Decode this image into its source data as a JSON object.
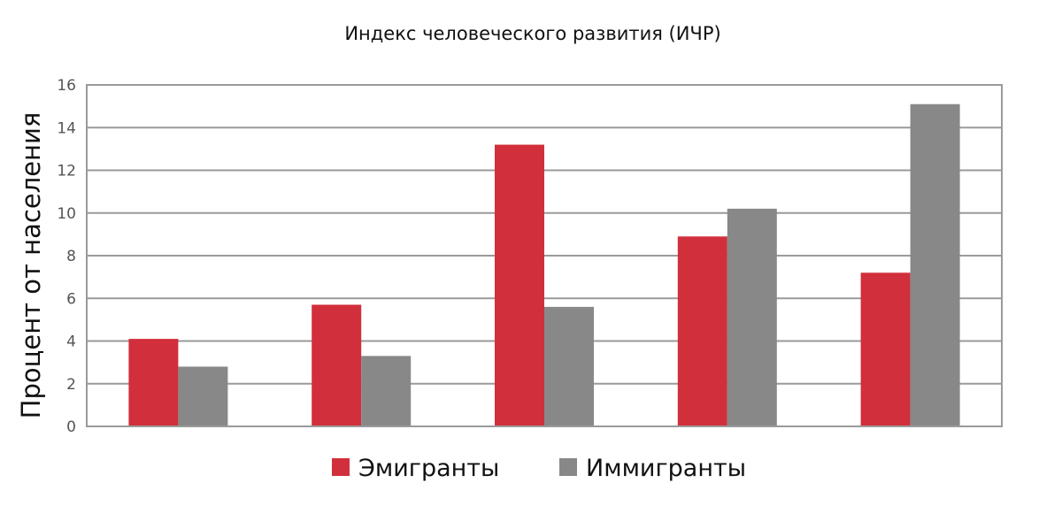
{
  "chart_data": {
    "type": "bar",
    "title": "Индекс человеческого развития (ИЧР)",
    "xlabel": "",
    "ylabel": "Процент от населения",
    "ylim": [
      0,
      16
    ],
    "yticks": [
      0,
      2,
      4,
      6,
      8,
      10,
      12,
      14,
      16
    ],
    "grid": true,
    "legend": "bottom-center",
    "categories": [
      "",
      "",
      "",
      "",
      ""
    ],
    "series": [
      {
        "name": "Эмигранты",
        "color": "#d12f3b",
        "values": [
          4.1,
          5.7,
          13.2,
          8.9,
          7.2
        ]
      },
      {
        "name": "Иммигранты",
        "color": "#888888",
        "values": [
          2.8,
          3.3,
          5.6,
          10.2,
          15.1
        ]
      }
    ]
  }
}
